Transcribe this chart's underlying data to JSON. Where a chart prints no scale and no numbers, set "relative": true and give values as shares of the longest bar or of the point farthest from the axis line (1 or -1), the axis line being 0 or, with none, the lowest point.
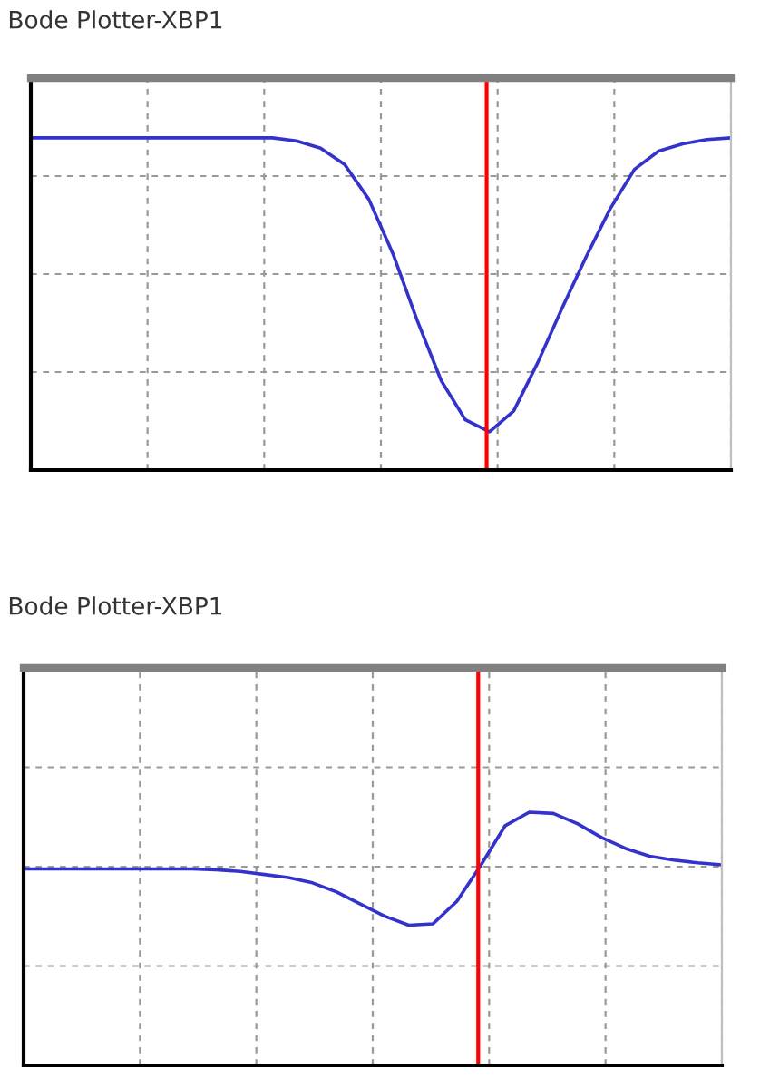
{
  "chart_data": [
    {
      "type": "line",
      "title": "Bode Plotter-XBP1",
      "relative": true,
      "tick_labels": false,
      "grid": true,
      "legend": false,
      "categories": [
        null,
        null,
        null,
        null,
        null,
        null,
        null,
        null,
        null,
        null,
        null,
        null,
        null,
        null,
        null,
        null,
        null,
        null,
        null,
        null,
        null,
        null,
        null,
        null,
        null,
        null,
        null,
        null,
        null,
        null
      ],
      "series": [
        {
          "color": "#3333cc",
          "values": [
            1.0,
            1.0,
            1.0,
            1.0,
            1.0,
            1.0,
            1.0,
            1.0,
            1.0,
            1.0,
            1.0,
            0.991,
            0.969,
            0.92,
            0.815,
            0.651,
            0.451,
            0.269,
            0.151,
            0.115,
            0.178,
            0.324,
            0.487,
            0.642,
            0.787,
            0.905,
            0.96,
            0.982,
            0.995,
            1.0
          ]
        }
      ]
    },
    {
      "type": "line",
      "title": "Bode Plotter-XBP1",
      "relative": true,
      "tick_labels": false,
      "grid": true,
      "legend": false,
      "categories": [
        null,
        null,
        null,
        null,
        null,
        null,
        null,
        null,
        null,
        null,
        null,
        null,
        null,
        null,
        null,
        null,
        null,
        null,
        null,
        null,
        null,
        null,
        null,
        null,
        null,
        null,
        null,
        null,
        null,
        null
      ],
      "series": [
        {
          "color": "#3333cc",
          "values": [
            0.776,
            0.776,
            0.776,
            0.776,
            0.776,
            0.776,
            0.776,
            0.776,
            0.773,
            0.766,
            0.754,
            0.742,
            0.721,
            0.685,
            0.637,
            0.589,
            0.554,
            0.559,
            0.649,
            0.792,
            0.947,
            1.0,
            0.995,
            0.955,
            0.9,
            0.857,
            0.826,
            0.811,
            0.8,
            0.792
          ]
        }
      ]
    }
  ]
}
